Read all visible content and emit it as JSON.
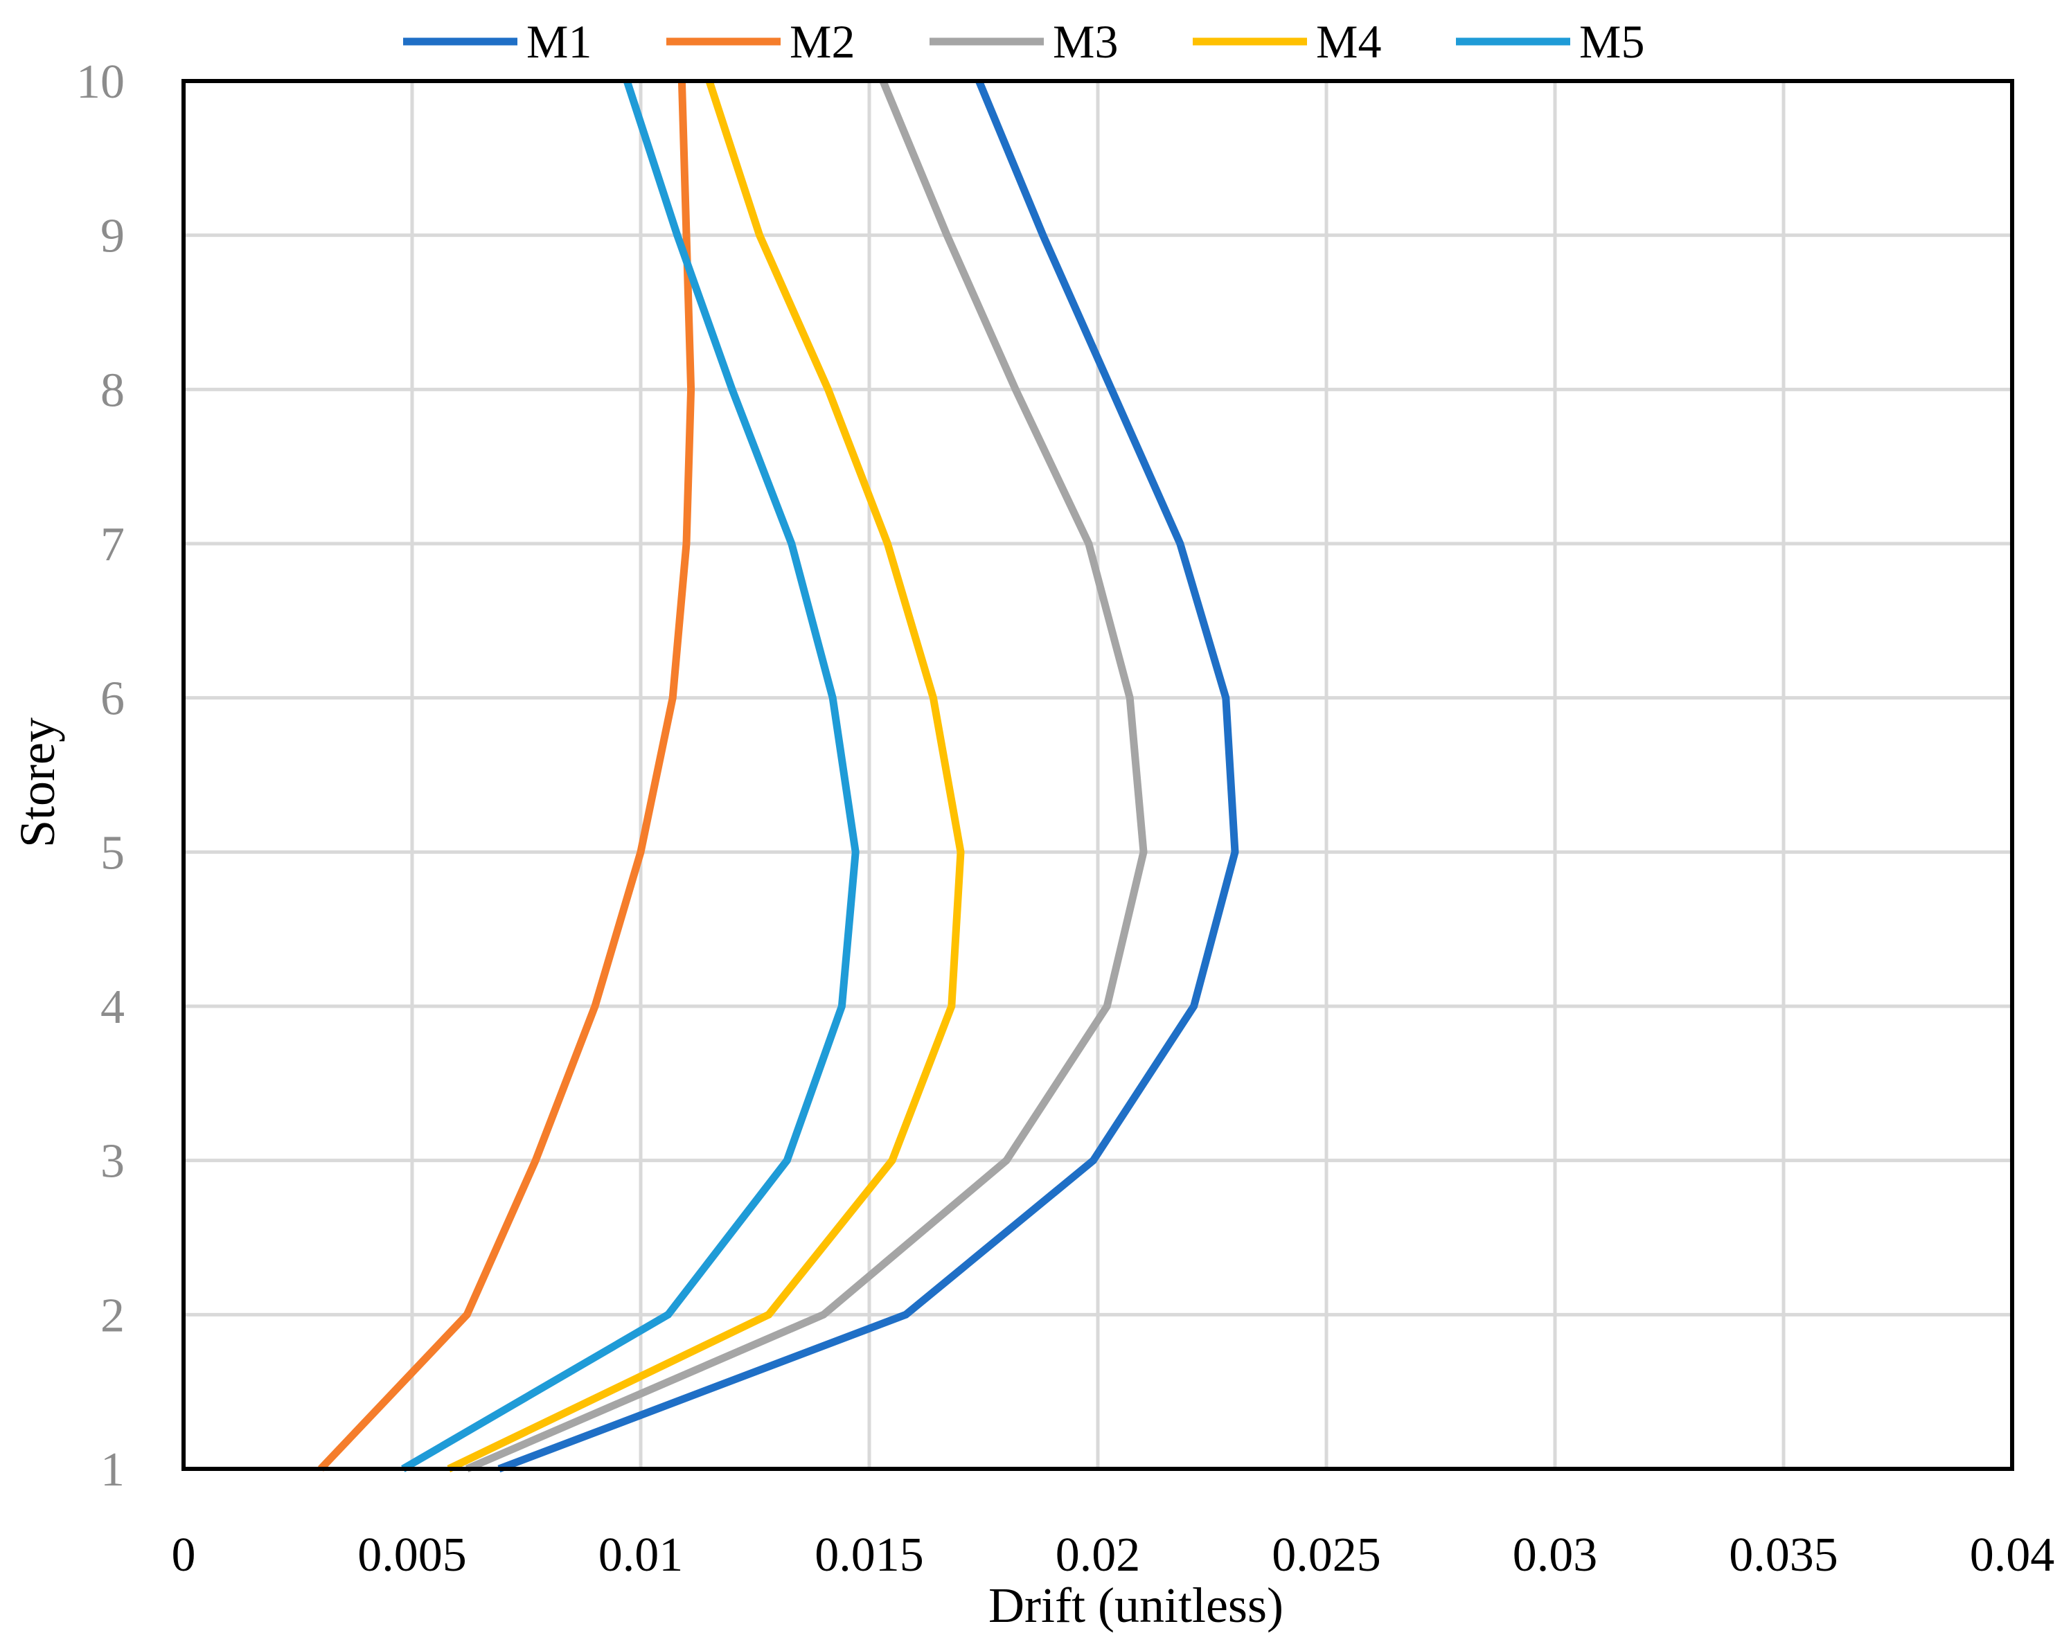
{
  "chart_data": {
    "type": "line",
    "orientation": "x-value-y-category",
    "title": "",
    "xlabel": "Drift (unitless)",
    "ylabel": "Storey",
    "xlim": [
      0,
      0.04
    ],
    "ylim": [
      1,
      10
    ],
    "x_ticks": [
      "0",
      "0.005",
      "0.01",
      "0.015",
      "0.02",
      "0.025",
      "0.03",
      "0.035",
      "0.04"
    ],
    "x_tick_values": [
      0,
      0.005,
      0.01,
      0.015,
      0.02,
      0.025,
      0.03,
      0.035,
      0.04
    ],
    "y_ticks": [
      "1",
      "2",
      "3",
      "4",
      "5",
      "6",
      "7",
      "8",
      "9",
      "10"
    ],
    "y_tick_values": [
      1,
      2,
      3,
      4,
      5,
      6,
      7,
      8,
      9,
      10
    ],
    "grid": true,
    "legend_position": "top",
    "series": [
      {
        "name": "M1",
        "color": "#1f6fc6",
        "storey": [
          1,
          2,
          3,
          4,
          5,
          6,
          7,
          8,
          9,
          10
        ],
        "drift": [
          0.0069,
          0.0158,
          0.0199,
          0.0221,
          0.023,
          0.0228,
          0.0218,
          0.0203,
          0.0188,
          0.0174
        ]
      },
      {
        "name": "M2",
        "color": "#f57d2b",
        "storey": [
          1,
          2,
          3,
          4,
          5,
          6,
          7,
          8,
          9,
          10
        ],
        "drift": [
          0.003,
          0.0062,
          0.0077,
          0.009,
          0.01,
          0.0107,
          0.011,
          0.0111,
          0.011,
          0.0109
        ]
      },
      {
        "name": "M3",
        "color": "#a5a5a5",
        "storey": [
          1,
          2,
          3,
          4,
          5,
          6,
          7,
          8,
          9,
          10
        ],
        "drift": [
          0.0062,
          0.014,
          0.018,
          0.0202,
          0.021,
          0.0207,
          0.0198,
          0.0182,
          0.0167,
          0.0153
        ]
      },
      {
        "name": "M4",
        "color": "#ffc000",
        "storey": [
          1,
          2,
          3,
          4,
          5,
          6,
          7,
          8,
          9,
          10
        ],
        "drift": [
          0.0058,
          0.0128,
          0.0155,
          0.0168,
          0.017,
          0.0164,
          0.0154,
          0.0141,
          0.0126,
          0.0115
        ]
      },
      {
        "name": "M5",
        "color": "#1f9bd7",
        "storey": [
          1,
          2,
          3,
          4,
          5,
          6,
          7,
          8,
          9,
          10
        ],
        "drift": [
          0.0048,
          0.0106,
          0.0132,
          0.0144,
          0.0147,
          0.0142,
          0.0133,
          0.012,
          0.0108,
          0.0097
        ]
      }
    ]
  }
}
